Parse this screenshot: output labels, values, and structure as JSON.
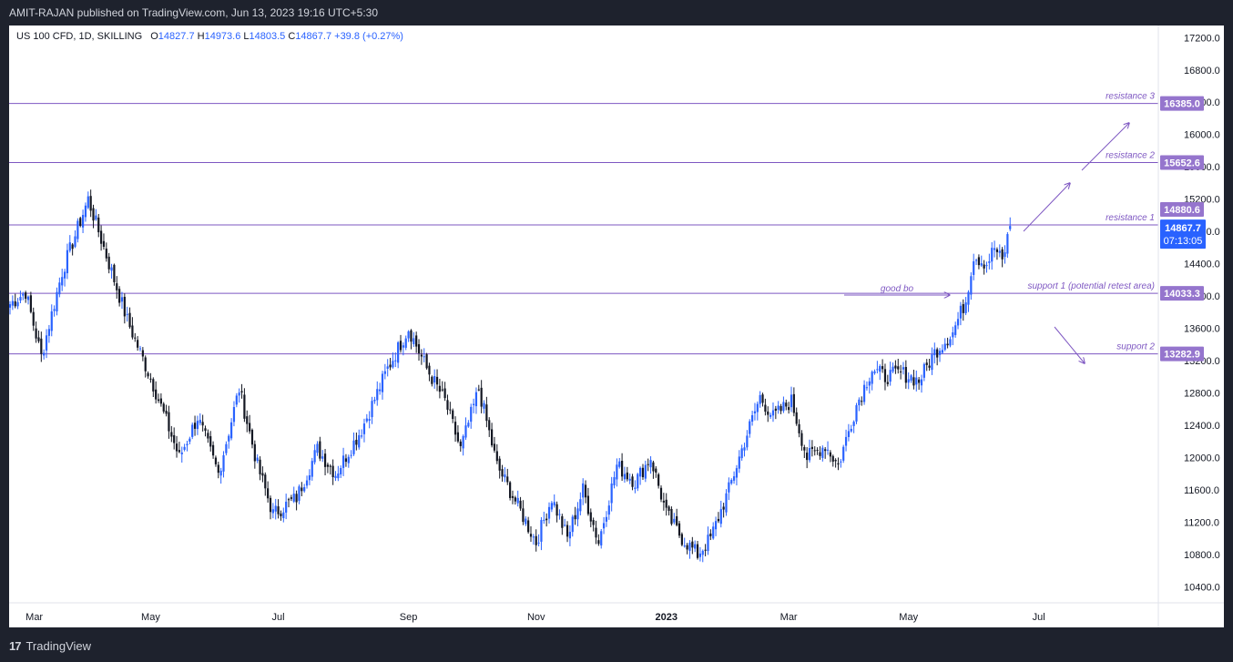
{
  "header": {
    "published_text": "AMIT-RAJAN published on TradingView.com, Jun 13, 2023 19:16 UTC+5:30"
  },
  "legend": {
    "symbol": "US 100 CFD, 1D, SKILLING",
    "open_key": "O",
    "open": "14827.7",
    "high_key": "H",
    "high": "14973.6",
    "low_key": "L",
    "low": "14803.5",
    "close_key": "C",
    "close": "14867.7",
    "change": "+39.8 (+0.27%)"
  },
  "footer": {
    "brand": "TradingView",
    "logo_glyph": "17"
  },
  "chart_data": {
    "type": "candlestick",
    "title": "US 100 CFD, 1D, SKILLING",
    "ylim": [
      10200,
      17350
    ],
    "y_ticks": [
      10400,
      10800,
      11200,
      11600,
      12000,
      12400,
      12800,
      13200,
      13600,
      14000,
      14400,
      14800,
      15200,
      15600,
      16000,
      16400,
      16800,
      17200
    ],
    "y_tick_labels": [
      "10400.0",
      "10800.0",
      "11200.0",
      "11600.0",
      "12000.0",
      "12400.0",
      "12800.0",
      "13200.0",
      "13600.0",
      "14000.0",
      "14400.0",
      "14800.0",
      "15200.0",
      "15600.0",
      "16000.0",
      "16400.0",
      "16800.0",
      "17200.0"
    ],
    "x_labels": [
      "Mar",
      "May",
      "Jul",
      "Sep",
      "Nov",
      "2023",
      "Mar",
      "May",
      "Jul"
    ],
    "anchors": [
      [
        0,
        13900
      ],
      [
        6,
        14050
      ],
      [
        12,
        13250
      ],
      [
        20,
        14300
      ],
      [
        30,
        15200
      ],
      [
        35,
        14700
      ],
      [
        45,
        13700
      ],
      [
        55,
        12900
      ],
      [
        65,
        12000
      ],
      [
        72,
        12500
      ],
      [
        80,
        11800
      ],
      [
        88,
        12850
      ],
      [
        95,
        11900
      ],
      [
        101,
        11300
      ],
      [
        110,
        11500
      ],
      [
        118,
        12100
      ],
      [
        125,
        11800
      ],
      [
        135,
        12350
      ],
      [
        145,
        13100
      ],
      [
        153,
        13600
      ],
      [
        160,
        13100
      ],
      [
        167,
        12700
      ],
      [
        173,
        12100
      ],
      [
        180,
        12850
      ],
      [
        187,
        11900
      ],
      [
        195,
        11400
      ],
      [
        202,
        10950
      ],
      [
        208,
        11500
      ],
      [
        214,
        11000
      ],
      [
        220,
        11600
      ],
      [
        226,
        10950
      ],
      [
        233,
        11900
      ],
      [
        240,
        11700
      ],
      [
        246,
        12000
      ],
      [
        252,
        11300
      ],
      [
        258,
        11000
      ],
      [
        264,
        10800
      ],
      [
        269,
        11000
      ],
      [
        276,
        11600
      ],
      [
        282,
        12200
      ],
      [
        288,
        12750
      ],
      [
        293,
        12500
      ],
      [
        300,
        12700
      ],
      [
        306,
        12000
      ],
      [
        313,
        12150
      ],
      [
        318,
        11900
      ],
      [
        325,
        12650
      ],
      [
        331,
        13100
      ],
      [
        336,
        13000
      ],
      [
        342,
        13050
      ],
      [
        349,
        12950
      ],
      [
        355,
        13300
      ],
      [
        362,
        13550
      ],
      [
        367,
        13950
      ],
      [
        370,
        14500
      ],
      [
        375,
        14400
      ],
      [
        378,
        14600
      ],
      [
        381,
        14420
      ],
      [
        384,
        14868
      ]
    ],
    "horizontal_levels": [
      {
        "name": "resistance 3",
        "value": 16385.0,
        "label": "16385.0"
      },
      {
        "name": "resistance 2",
        "value": 15652.6,
        "label": "15652.6"
      },
      {
        "name": "resistance 1",
        "value": 14880.6,
        "label": "14880.6"
      },
      {
        "name": "support 1 (potential retest area)",
        "value": 14033.3,
        "label": "14033.3"
      },
      {
        "name": "support 2",
        "value": 13282.9,
        "label": "13282.9"
      }
    ],
    "last_price": {
      "value": 14867.7,
      "label": "14867.7",
      "countdown": "07:13:05"
    },
    "annotations": [
      {
        "text": "good bo"
      },
      {
        "text": "resistance 1"
      },
      {
        "text": "resistance 2"
      },
      {
        "text": "resistance 3"
      },
      {
        "text": "support 1 (potential retest area)"
      },
      {
        "text": "support 2"
      }
    ],
    "colors": {
      "up": "#2962ff",
      "down": "#131722",
      "level_line": "#7e57c2",
      "level_label_bg": "#9575cd",
      "last_price_bg": "#2962ff",
      "axis_text": "#131722"
    }
  }
}
